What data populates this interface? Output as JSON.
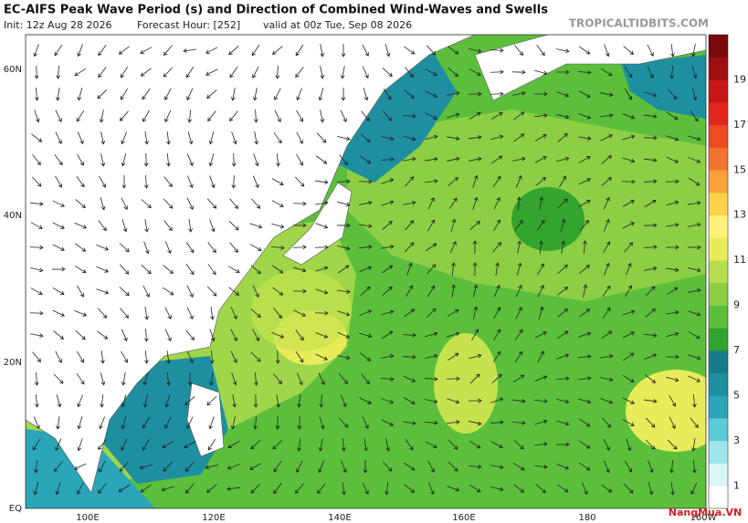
{
  "header": {
    "title": "EC-AIFS Peak Wave Period (s) and Direction of Combined Wind-Waves and Swells",
    "init": "Init: 12z Aug 28 2026",
    "forecast_hour": "Forecast Hour: [252]",
    "valid": "valid at 00z Tue, Sep 08 2026",
    "source": "TROPICALTIDBITS.COM"
  },
  "map": {
    "lat_labels": [
      "60N",
      "40N",
      "20N",
      "EQ"
    ],
    "lon_labels": [
      "100E",
      "120E",
      "140E",
      "160E",
      "180",
      "160W"
    ]
  },
  "colorbar": {
    "labels": [
      "19",
      "17",
      "15",
      "13",
      "11",
      "9",
      "7",
      "5",
      "3",
      "1"
    ]
  },
  "logo": "NangMua.VN"
}
